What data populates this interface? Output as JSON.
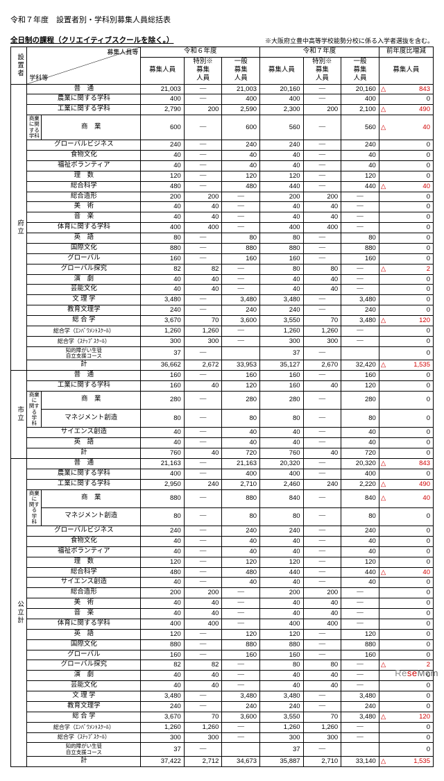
{
  "page_title": "令和７年度　設置者別・学科別募集人員総括表",
  "subtitle": "全日制の課程（クリエイティブスクールを除く。）",
  "note": "※大阪府立豊中高等学校能勢分校に係る入学者選抜を含む。",
  "header": {
    "setter": "設置者",
    "diag_top": "募集人員等",
    "diag_bot": "学科等",
    "year_r6": "令和６年度",
    "year_r7": "令和７年度",
    "col_total": "募集人員",
    "col_special": "特別※\n募集\n人員",
    "col_general": "一般\n募集\n人員",
    "col_diff": "前年度比増減",
    "col_diff_sub": "募集人員"
  },
  "sections": [
    {
      "setter": "府立",
      "rows": [
        {
          "k": "普　通",
          "r6": [
            "21,003",
            "—",
            "21,003"
          ],
          "r7": [
            "20,160",
            "—",
            "20,160"
          ],
          "d": [
            "△",
            "843"
          ]
        },
        {
          "k": "農業に関する学科",
          "r6": [
            "400",
            "—",
            "400"
          ],
          "r7": [
            "400",
            "—",
            "400"
          ],
          "d": [
            "",
            "0"
          ]
        },
        {
          "k": "工業に関する学科",
          "r6": [
            "2,790",
            "200",
            "2,590"
          ],
          "r7": [
            "2,300",
            "200",
            "2,100"
          ],
          "d": [
            "△",
            "490"
          ]
        },
        {
          "k": "商　業",
          "pre": "商業に関する学科",
          "r6": [
            "600",
            "—",
            "600"
          ],
          "r7": [
            "560",
            "—",
            "560"
          ],
          "d": [
            "△",
            "40"
          ]
        },
        {
          "k": "グローバルビジネス",
          "r6": [
            "240",
            "—",
            "240"
          ],
          "r7": [
            "240",
            "—",
            "240"
          ],
          "d": [
            "",
            "0"
          ]
        },
        {
          "k": "食物文化",
          "r6": [
            "40",
            "—",
            "40"
          ],
          "r7": [
            "40",
            "—",
            "40"
          ],
          "d": [
            "",
            "0"
          ]
        },
        {
          "k": "福祉ボランティア",
          "r6": [
            "40",
            "—",
            "40"
          ],
          "r7": [
            "40",
            "—",
            "40"
          ],
          "d": [
            "",
            "0"
          ]
        },
        {
          "k": "理　数",
          "r6": [
            "120",
            "—",
            "120"
          ],
          "r7": [
            "120",
            "—",
            "120"
          ],
          "d": [
            "",
            "0"
          ]
        },
        {
          "k": "総合科学",
          "r6": [
            "480",
            "—",
            "480"
          ],
          "r7": [
            "440",
            "—",
            "440"
          ],
          "d": [
            "△",
            "40"
          ]
        },
        {
          "k": "総合造形",
          "r6": [
            "200",
            "200",
            "—"
          ],
          "r7": [
            "200",
            "200",
            "—"
          ],
          "d": [
            "",
            "0"
          ]
        },
        {
          "k": "美　術",
          "r6": [
            "40",
            "40",
            "—"
          ],
          "r7": [
            "40",
            "40",
            "—"
          ],
          "d": [
            "",
            "0"
          ]
        },
        {
          "k": "音　楽",
          "r6": [
            "40",
            "40",
            "—"
          ],
          "r7": [
            "40",
            "40",
            "—"
          ],
          "d": [
            "",
            "0"
          ]
        },
        {
          "k": "体育に関する学科",
          "r6": [
            "400",
            "400",
            "—"
          ],
          "r7": [
            "400",
            "400",
            "—"
          ],
          "d": [
            "",
            "0"
          ]
        },
        {
          "k": "英　語",
          "r6": [
            "80",
            "—",
            "80"
          ],
          "r7": [
            "80",
            "—",
            "80"
          ],
          "d": [
            "",
            "0"
          ]
        },
        {
          "k": "国際文化",
          "r6": [
            "880",
            "—",
            "880"
          ],
          "r7": [
            "880",
            "—",
            "880"
          ],
          "d": [
            "",
            "0"
          ]
        },
        {
          "k": "グローバル",
          "r6": [
            "160",
            "—",
            "160"
          ],
          "r7": [
            "160",
            "—",
            "160"
          ],
          "d": [
            "",
            "0"
          ]
        },
        {
          "k": "グローバル探究",
          "r6": [
            "82",
            "82",
            "—"
          ],
          "r7": [
            "80",
            "80",
            "—"
          ],
          "d": [
            "△",
            "2"
          ]
        },
        {
          "k": "演　劇",
          "r6": [
            "40",
            "40",
            "—"
          ],
          "r7": [
            "40",
            "40",
            "—"
          ],
          "d": [
            "",
            "0"
          ]
        },
        {
          "k": "芸能文化",
          "r6": [
            "40",
            "40",
            "—"
          ],
          "r7": [
            "40",
            "40",
            "—"
          ],
          "d": [
            "",
            "0"
          ]
        },
        {
          "k": "文 理 学",
          "r6": [
            "3,480",
            "—",
            "3,480"
          ],
          "r7": [
            "3,480",
            "—",
            "3,480"
          ],
          "d": [
            "",
            "0"
          ]
        },
        {
          "k": "教育文理学",
          "r6": [
            "240",
            "—",
            "240"
          ],
          "r7": [
            "240",
            "—",
            "240"
          ],
          "d": [
            "",
            "0"
          ]
        },
        {
          "k": "総 合 学",
          "r6": [
            "3,670",
            "70",
            "3,600"
          ],
          "r7": [
            "3,550",
            "70",
            "3,480"
          ],
          "d": [
            "△",
            "120"
          ]
        },
        {
          "k": "総合学（ｴﾝﾊﾟﾜﾒﾝﾄｽｸｰﾙ）",
          "small": true,
          "r6": [
            "1,260",
            "1,260",
            "—"
          ],
          "r7": [
            "1,260",
            "1,260",
            "—"
          ],
          "d": [
            "",
            "0"
          ]
        },
        {
          "k": "総合学（ｽﾃｯﾌﾟｽｸｰﾙ）",
          "small": true,
          "r6": [
            "300",
            "300",
            "—"
          ],
          "r7": [
            "300",
            "300",
            "—"
          ],
          "d": [
            "",
            "0"
          ]
        },
        {
          "k": "知的障がい生徒\n自立支援コース",
          "tiny": true,
          "r6": [
            "37",
            "—",
            "",
            "nb"
          ],
          "r7": [
            "37",
            "—",
            "",
            "nb"
          ],
          "d": [
            "",
            "0"
          ]
        },
        {
          "k": "計",
          "total": true,
          "r6": [
            "36,662",
            "2,672",
            "33,953"
          ],
          "r7": [
            "35,127",
            "2,670",
            "32,420"
          ],
          "d": [
            "△",
            "1,535"
          ]
        }
      ]
    },
    {
      "setter": "市立",
      "rows": [
        {
          "k": "普　通",
          "r6": [
            "160",
            "—",
            "160"
          ],
          "r7": [
            "160",
            "—",
            "160"
          ],
          "d": [
            "",
            "0"
          ]
        },
        {
          "k": "工業に関する学科",
          "r6": [
            "160",
            "40",
            "120"
          ],
          "r7": [
            "160",
            "40",
            "120"
          ],
          "d": [
            "",
            "0"
          ]
        },
        {
          "k": "商　業",
          "pre": "商業に\n関する\n学　科",
          "r6": [
            "280",
            "—",
            "280"
          ],
          "r7": [
            "280",
            "—",
            "280"
          ],
          "d": [
            "",
            "0"
          ],
          "premerge": 2
        },
        {
          "k": "マネジメント創造",
          "r6": [
            "80",
            "—",
            "80"
          ],
          "r7": [
            "80",
            "—",
            "80"
          ],
          "d": [
            "",
            "0"
          ]
        },
        {
          "k": "サイエンス創造",
          "r6": [
            "40",
            "—",
            "40"
          ],
          "r7": [
            "40",
            "—",
            "40"
          ],
          "d": [
            "",
            "0"
          ]
        },
        {
          "k": "英　語",
          "r6": [
            "40",
            "—",
            "40"
          ],
          "r7": [
            "40",
            "—",
            "40"
          ],
          "d": [
            "",
            "0"
          ]
        },
        {
          "k": "計",
          "total": true,
          "r6": [
            "760",
            "40",
            "720"
          ],
          "r7": [
            "760",
            "40",
            "720"
          ],
          "d": [
            "",
            "0"
          ]
        }
      ]
    },
    {
      "setter": "公立計",
      "rows": [
        {
          "k": "普　通",
          "r6": [
            "21,163",
            "—",
            "21,163"
          ],
          "r7": [
            "20,320",
            "—",
            "20,320"
          ],
          "d": [
            "△",
            "843"
          ]
        },
        {
          "k": "農業に関する学科",
          "r6": [
            "400",
            "—",
            "400"
          ],
          "r7": [
            "400",
            "—",
            "400"
          ],
          "d": [
            "",
            "0"
          ]
        },
        {
          "k": "工業に関する学科",
          "r6": [
            "2,950",
            "240",
            "2,710"
          ],
          "r7": [
            "2,460",
            "240",
            "2,220"
          ],
          "d": [
            "△",
            "490"
          ]
        },
        {
          "k": "商　業",
          "pre": "商業に\n関する\n学　科",
          "r6": [
            "880",
            "—",
            "880"
          ],
          "r7": [
            "840",
            "—",
            "840"
          ],
          "d": [
            "△",
            "40"
          ],
          "premerge": 2
        },
        {
          "k": "マネジメント創造",
          "r6": [
            "80",
            "—",
            "80"
          ],
          "r7": [
            "80",
            "—",
            "80"
          ],
          "d": [
            "",
            "0"
          ]
        },
        {
          "k": "グローバルビジネス",
          "r6": [
            "240",
            "—",
            "240"
          ],
          "r7": [
            "240",
            "—",
            "240"
          ],
          "d": [
            "",
            "0"
          ]
        },
        {
          "k": "食物文化",
          "r6": [
            "40",
            "—",
            "40"
          ],
          "r7": [
            "40",
            "—",
            "40"
          ],
          "d": [
            "",
            "0"
          ]
        },
        {
          "k": "福祉ボランティア",
          "r6": [
            "40",
            "—",
            "40"
          ],
          "r7": [
            "40",
            "—",
            "40"
          ],
          "d": [
            "",
            "0"
          ]
        },
        {
          "k": "理　数",
          "r6": [
            "120",
            "—",
            "120"
          ],
          "r7": [
            "120",
            "—",
            "120"
          ],
          "d": [
            "",
            "0"
          ]
        },
        {
          "k": "総合科学",
          "r6": [
            "480",
            "—",
            "480"
          ],
          "r7": [
            "440",
            "—",
            "440"
          ],
          "d": [
            "△",
            "40"
          ]
        },
        {
          "k": "サイエンス創造",
          "r6": [
            "40",
            "—",
            "40"
          ],
          "r7": [
            "40",
            "—",
            "40"
          ],
          "d": [
            "",
            "0"
          ]
        },
        {
          "k": "総合造形",
          "r6": [
            "200",
            "200",
            "—"
          ],
          "r7": [
            "200",
            "200",
            "—"
          ],
          "d": [
            "",
            "0"
          ]
        },
        {
          "k": "美　術",
          "r6": [
            "40",
            "40",
            "—"
          ],
          "r7": [
            "40",
            "40",
            "—"
          ],
          "d": [
            "",
            "0"
          ]
        },
        {
          "k": "音　楽",
          "r6": [
            "40",
            "40",
            "—"
          ],
          "r7": [
            "40",
            "40",
            "—"
          ],
          "d": [
            "",
            "0"
          ]
        },
        {
          "k": "体育に関する学科",
          "r6": [
            "400",
            "400",
            "—"
          ],
          "r7": [
            "400",
            "400",
            "—"
          ],
          "d": [
            "",
            "0"
          ]
        },
        {
          "k": "英　語",
          "r6": [
            "120",
            "—",
            "120"
          ],
          "r7": [
            "120",
            "—",
            "120"
          ],
          "d": [
            "",
            "0"
          ]
        },
        {
          "k": "国際文化",
          "r6": [
            "880",
            "—",
            "880"
          ],
          "r7": [
            "880",
            "—",
            "880"
          ],
          "d": [
            "",
            "0"
          ]
        },
        {
          "k": "グローバル",
          "r6": [
            "160",
            "—",
            "160"
          ],
          "r7": [
            "160",
            "—",
            "160"
          ],
          "d": [
            "",
            "0"
          ]
        },
        {
          "k": "グローバル探究",
          "r6": [
            "82",
            "82",
            "—"
          ],
          "r7": [
            "80",
            "80",
            "—"
          ],
          "d": [
            "△",
            "2"
          ]
        },
        {
          "k": "演　劇",
          "r6": [
            "40",
            "40",
            "—"
          ],
          "r7": [
            "40",
            "40",
            "—"
          ],
          "d": [
            "",
            "0"
          ]
        },
        {
          "k": "芸能文化",
          "r6": [
            "40",
            "40",
            "—"
          ],
          "r7": [
            "40",
            "40",
            "—"
          ],
          "d": [
            "",
            "0"
          ]
        },
        {
          "k": "文 理 学",
          "r6": [
            "3,480",
            "—",
            "3,480"
          ],
          "r7": [
            "3,480",
            "—",
            "3,480"
          ],
          "d": [
            "",
            "0"
          ]
        },
        {
          "k": "教育文理学",
          "r6": [
            "240",
            "—",
            "240"
          ],
          "r7": [
            "240",
            "—",
            "240"
          ],
          "d": [
            "",
            "0"
          ]
        },
        {
          "k": "総 合 学",
          "r6": [
            "3,670",
            "70",
            "3,600"
          ],
          "r7": [
            "3,550",
            "70",
            "3,480"
          ],
          "d": [
            "△",
            "120"
          ]
        },
        {
          "k": "総合学（ｴﾝﾊﾟﾜﾒﾝﾄｽｸｰﾙ）",
          "small": true,
          "r6": [
            "1,260",
            "1,260",
            "—"
          ],
          "r7": [
            "1,260",
            "1,260",
            "—"
          ],
          "d": [
            "",
            "0"
          ]
        },
        {
          "k": "総合学（ｽﾃｯﾌﾟｽｸｰﾙ）",
          "small": true,
          "r6": [
            "300",
            "300",
            "—"
          ],
          "r7": [
            "300",
            "300",
            "—"
          ],
          "d": [
            "",
            "0"
          ]
        },
        {
          "k": "知的障がい生徒\n自立支援コース",
          "tiny": true,
          "r6": [
            "37",
            "—",
            "",
            "nb"
          ],
          "r7": [
            "37",
            "—",
            "",
            "nb"
          ],
          "d": [
            "",
            "0"
          ]
        },
        {
          "k": "計",
          "total": true,
          "r6": [
            "37,422",
            "2,712",
            "34,673"
          ],
          "r7": [
            "35,887",
            "2,710",
            "33,140"
          ],
          "d": [
            "△",
            "1,535"
          ]
        }
      ]
    }
  ],
  "watermark": {
    "a": "Re",
    "b": "se",
    "c": "Mom"
  }
}
